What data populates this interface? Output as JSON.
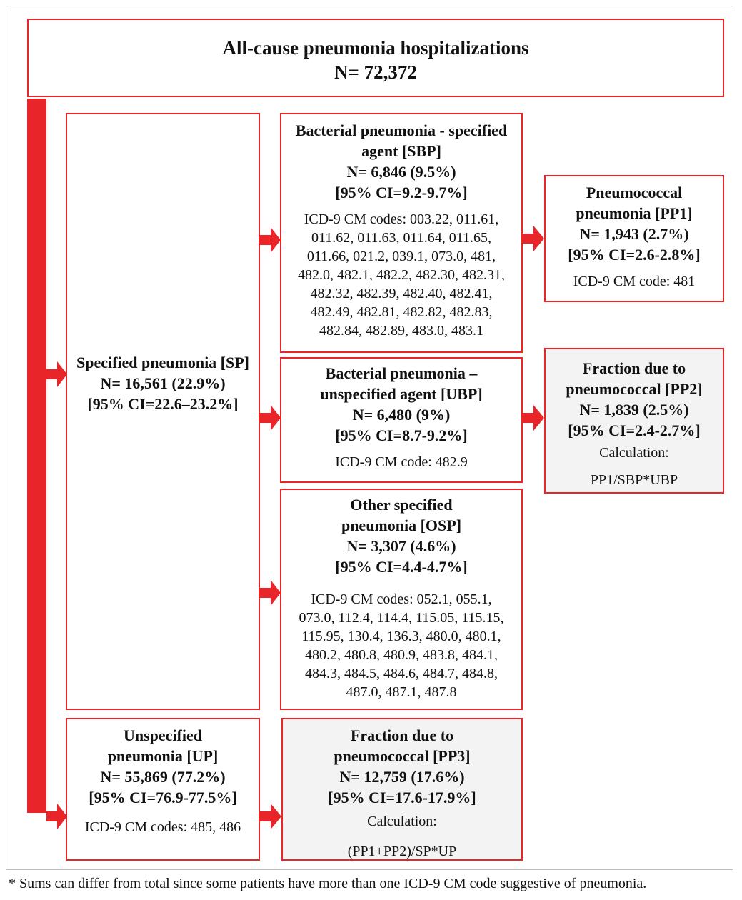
{
  "top": {
    "title": "All-cause pneumonia hospitalizations",
    "n": "N= 72,372"
  },
  "sp": {
    "title": "Specified pneumonia [SP]",
    "n": "N= 16,561 (22.9%)",
    "ci": "[95% CI=22.6–23.2%]"
  },
  "sbp": {
    "title_1": "Bacterial pneumonia - specified",
    "title_2": "agent  [SBP]",
    "n": "N= 6,846 (9.5%)",
    "ci": "[95% CI=9.2-9.7%]",
    "codes": [
      "ICD-9 CM codes: 003.22, 011.61,",
      "011.62, 011.63, 011.64, 011.65,",
      "011.66, 021.2, 039.1, 073.0, 481,",
      "482.0, 482.1, 482.2, 482.30, 482.31,",
      "482.32, 482.39, 482.40, 482.41,",
      "482.49, 482.81, 482.82, 482.83,",
      "482.84, 482.89, 483.0, 483.1"
    ]
  },
  "pp1": {
    "title_1": "Pneumococcal",
    "title_2": "pneumonia [PP1]",
    "n": "N= 1,943 (2.7%)",
    "ci": "[95% CI=2.6-2.8%]",
    "code": "ICD-9 CM code: 481"
  },
  "ubp": {
    "title_1": "Bacterial pneumonia –",
    "title_2": "unspecified agent [UBP]",
    "n": "N= 6,480 (9%)",
    "ci": "[95% CI=8.7-9.2%]",
    "code": "ICD-9 CM code: 482.9"
  },
  "pp2": {
    "title_1": "Fraction due to",
    "title_2": "pneumococcal [PP2]",
    "n": "N= 1,839 (2.5%)",
    "ci": "[95% CI=2.4-2.7%]",
    "calc_label": "Calculation:",
    "calc": "PP1/SBP*UBP"
  },
  "osp": {
    "title_1": "Other specified",
    "title_2": "pneumonia [OSP]",
    "n": "N= 3,307 (4.6%)",
    "ci": "[95% CI=4.4-4.7%]",
    "codes": [
      "ICD-9 CM codes: 052.1, 055.1,",
      "073.0, 112.4, 114.4, 115.05, 115.15,",
      "115.95, 130.4, 136.3,  480.0, 480.1,",
      "480.2, 480.8, 480.9, 483.8, 484.1,",
      "484.3, 484.5, 484.6, 484.7, 484.8,",
      "487.0, 487.1, 487.8"
    ]
  },
  "up": {
    "title_1": "Unspecified",
    "title_2": "pneumonia [UP]",
    "n": "N= 55,869 (77.2%)",
    "ci": "[95% CI=76.9-77.5%]",
    "codes": "ICD-9 CM codes: 485, 486"
  },
  "pp3": {
    "title_1": "Fraction due to",
    "title_2": "pneumococcal [PP3]",
    "n": "N= 12,759 (17.6%)",
    "ci": "[95% CI=17.6-17.9%]",
    "calc_label": "Calculation:",
    "calc": "(PP1+PP2)/SP*UP"
  },
  "footnote": "* Sums can differ from total since some patients have more than one ICD-9 CM code suggestive of pneumonia.",
  "colors": {
    "accent": "#e8262a",
    "grey_fill": "#f3f3f3"
  }
}
